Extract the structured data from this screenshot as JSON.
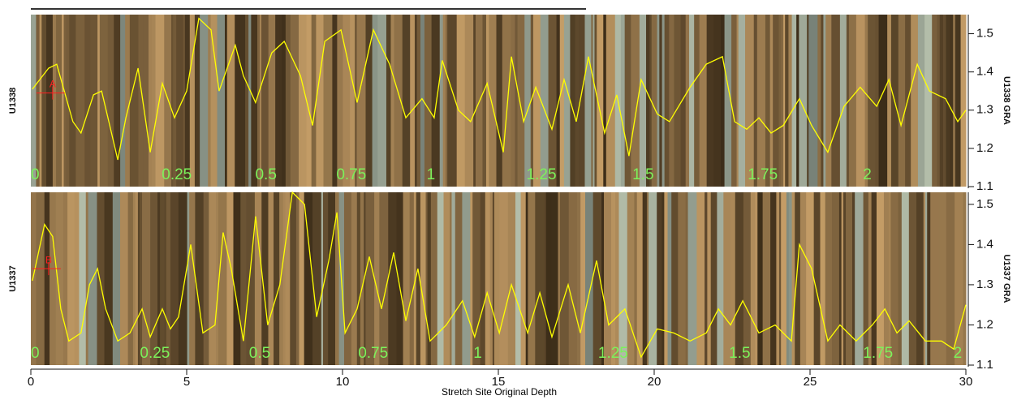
{
  "chart_data": [
    {
      "type": "line",
      "side_label": "U1338",
      "ylabel": "U1338 GRA",
      "x": [
        0.05,
        0.57,
        0.83,
        1.35,
        1.61,
        2.01,
        2.27,
        2.53,
        2.79,
        3.05,
        3.44,
        3.83,
        4.22,
        4.61,
        5.0,
        5.39,
        5.78,
        6.04,
        6.3,
        6.56,
        6.82,
        7.21,
        7.73,
        8.13,
        8.65,
        9.04,
        9.43,
        9.95,
        10.47,
        10.99,
        11.51,
        12.03,
        12.55,
        12.94,
        13.2,
        13.72,
        14.11,
        14.64,
        15.16,
        15.42,
        15.81,
        16.2,
        16.72,
        17.11,
        17.5,
        17.89,
        18.41,
        18.8,
        19.19,
        19.58,
        20.1,
        20.49,
        21.15,
        21.67,
        22.19,
        22.58,
        22.97,
        23.36,
        23.75,
        24.14,
        24.66,
        25.05,
        25.57,
        26.09,
        26.61,
        27.14,
        27.53,
        27.92,
        28.44,
        28.83,
        29.35,
        29.74,
        30.0
      ],
      "series": [
        {
          "color": "#ffff00",
          "values": [
            1.355,
            1.41,
            1.42,
            1.27,
            1.24,
            1.34,
            1.35,
            1.26,
            1.17,
            1.28,
            1.41,
            1.19,
            1.37,
            1.28,
            1.35,
            1.54,
            1.51,
            1.35,
            1.41,
            1.47,
            1.39,
            1.32,
            1.45,
            1.48,
            1.39,
            1.26,
            1.48,
            1.51,
            1.32,
            1.51,
            1.42,
            1.28,
            1.33,
            1.28,
            1.43,
            1.3,
            1.27,
            1.37,
            1.19,
            1.44,
            1.27,
            1.36,
            1.25,
            1.38,
            1.27,
            1.44,
            1.24,
            1.34,
            1.18,
            1.38,
            1.29,
            1.27,
            1.36,
            1.42,
            1.44,
            1.27,
            1.25,
            1.28,
            1.24,
            1.26,
            1.33,
            1.26,
            1.19,
            1.31,
            1.36,
            1.31,
            1.38,
            1.26,
            1.42,
            1.35,
            1.33,
            1.27,
            1.3
          ]
        }
      ],
      "xlim": [
        0,
        30
      ],
      "ylim": [
        1.1,
        1.55
      ],
      "yticks": [
        1.1,
        1.2,
        1.3,
        1.4,
        1.5
      ],
      "annotations": [
        {
          "text": "0",
          "x": 0
        },
        {
          "text": "0.25",
          "x": 4.2
        },
        {
          "text": "0.5",
          "x": 7.2
        },
        {
          "text": "0.75",
          "x": 9.8
        },
        {
          "text": "1",
          "x": 12.7
        },
        {
          "text": "1.25",
          "x": 15.9
        },
        {
          "text": "1.5",
          "x": 19.3
        },
        {
          "text": "1.75",
          "x": 23.0
        },
        {
          "text": "2",
          "x": 26.7
        }
      ],
      "marker": {
        "label": "A",
        "x": 0.7,
        "y": 1.345
      }
    },
    {
      "type": "line",
      "side_label": "U1337",
      "ylabel": "U1337 GRA",
      "x": [
        0.05,
        0.44,
        0.7,
        0.96,
        1.22,
        1.61,
        1.88,
        2.14,
        2.4,
        2.79,
        3.18,
        3.57,
        3.83,
        4.22,
        4.48,
        4.74,
        5.13,
        5.52,
        5.91,
        6.17,
        6.43,
        6.82,
        7.21,
        7.6,
        7.99,
        8.39,
        8.78,
        9.17,
        9.56,
        9.82,
        10.08,
        10.47,
        10.86,
        11.25,
        11.64,
        12.03,
        12.42,
        12.81,
        13.33,
        13.85,
        14.24,
        14.64,
        15.03,
        15.42,
        15.94,
        16.33,
        16.72,
        17.24,
        17.63,
        18.15,
        18.54,
        19.06,
        19.58,
        20.1,
        20.63,
        21.15,
        21.67,
        22.06,
        22.45,
        22.84,
        23.36,
        23.88,
        24.4,
        24.66,
        25.05,
        25.57,
        25.96,
        26.48,
        27.0,
        27.4,
        27.79,
        28.18,
        28.7,
        29.22,
        29.61,
        30.0
      ],
      "series": [
        {
          "color": "#ffff00",
          "values": [
            1.31,
            1.45,
            1.42,
            1.24,
            1.16,
            1.18,
            1.3,
            1.34,
            1.24,
            1.16,
            1.18,
            1.24,
            1.17,
            1.24,
            1.19,
            1.22,
            1.4,
            1.18,
            1.2,
            1.43,
            1.34,
            1.16,
            1.47,
            1.2,
            1.3,
            1.53,
            1.5,
            1.22,
            1.36,
            1.48,
            1.18,
            1.24,
            1.37,
            1.24,
            1.38,
            1.21,
            1.34,
            1.16,
            1.2,
            1.26,
            1.17,
            1.28,
            1.18,
            1.3,
            1.18,
            1.28,
            1.17,
            1.3,
            1.18,
            1.36,
            1.2,
            1.24,
            1.12,
            1.19,
            1.18,
            1.16,
            1.18,
            1.24,
            1.2,
            1.26,
            1.18,
            1.2,
            1.16,
            1.4,
            1.34,
            1.16,
            1.2,
            1.16,
            1.2,
            1.24,
            1.18,
            1.21,
            1.16,
            1.16,
            1.14,
            1.25
          ]
        }
      ],
      "xlim": [
        0,
        30
      ],
      "ylim": [
        1.1,
        1.53
      ],
      "yticks": [
        1.1,
        1.2,
        1.3,
        1.4,
        1.5
      ],
      "xticks": [
        0,
        5,
        10,
        15,
        20,
        25,
        30
      ],
      "xlabel": "Stretch Site Original Depth",
      "annotations": [
        {
          "text": "0",
          "x": 0
        },
        {
          "text": "0.25",
          "x": 3.5
        },
        {
          "text": "0.5",
          "x": 7.0
        },
        {
          "text": "0.75",
          "x": 10.5
        },
        {
          "text": "1",
          "x": 14.2
        },
        {
          "text": "1.25",
          "x": 18.2
        },
        {
          "text": "1.5",
          "x": 22.4
        },
        {
          "text": "1.75",
          "x": 26.7
        },
        {
          "text": "2",
          "x": 29.6
        }
      ],
      "marker": {
        "label": "B",
        "x": 0.57,
        "y": 1.34
      }
    }
  ]
}
